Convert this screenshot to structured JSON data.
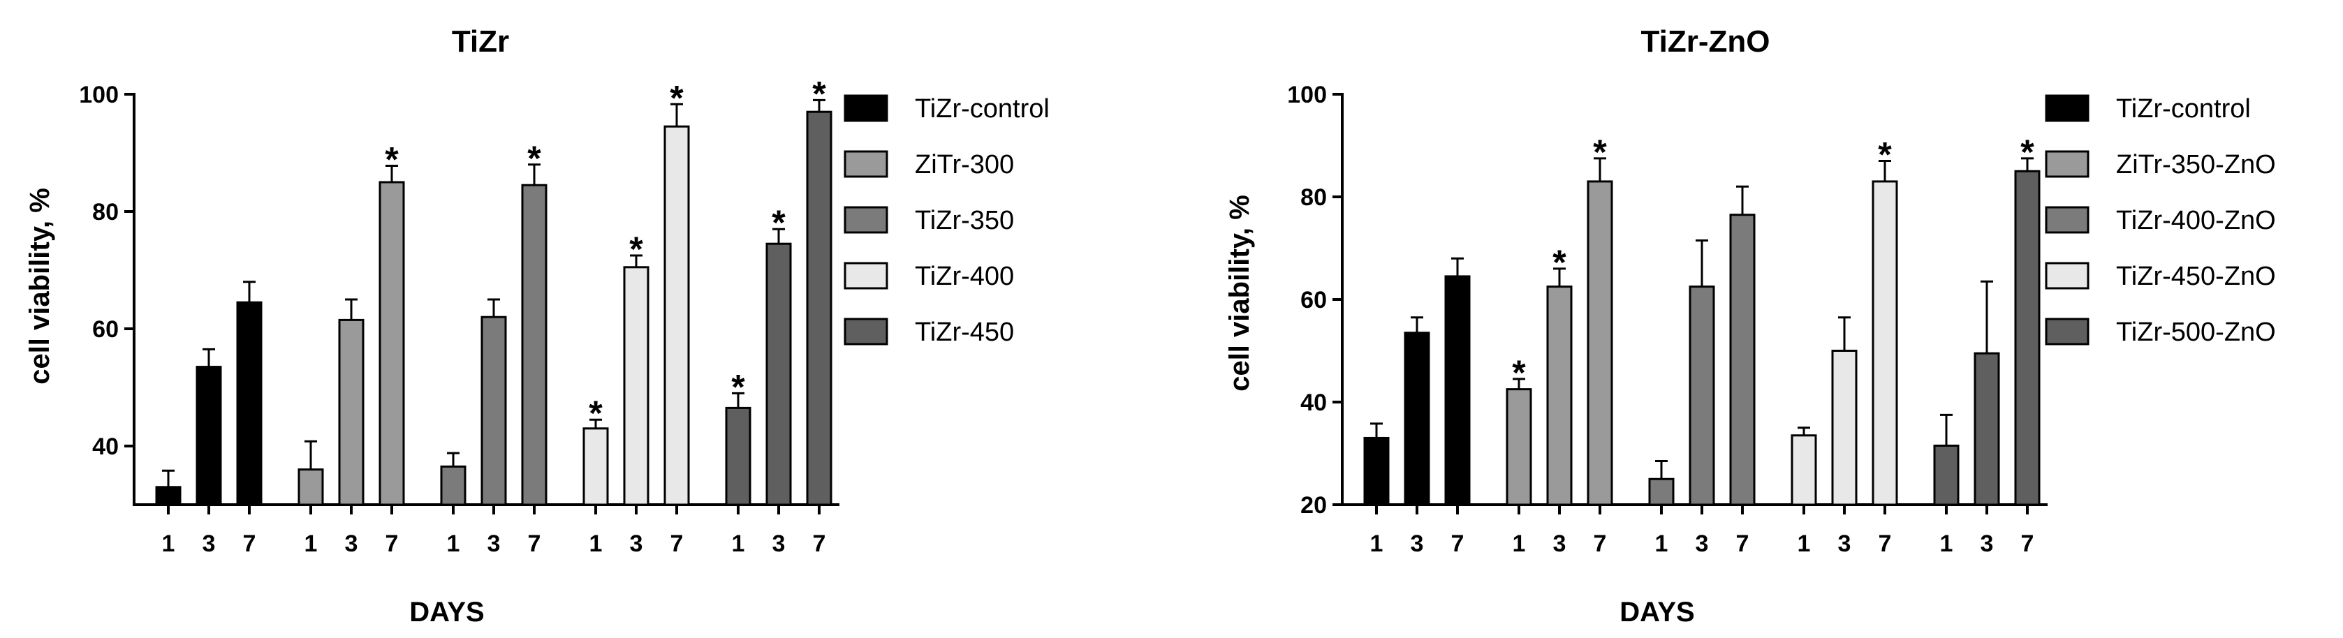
{
  "chart_data": [
    {
      "type": "bar",
      "title": "TiZr",
      "xlabel": "DAYS",
      "ylabel": "cell viability, %",
      "ylim": [
        30,
        100
      ],
      "yticks": [
        40,
        60,
        80,
        100
      ],
      "categories": [
        "1",
        "3",
        "7"
      ],
      "legend_position": "right",
      "significance_marker": "*",
      "series": [
        {
          "name": "TiZr-control",
          "color": "#000000",
          "values": [
            33,
            53.5,
            64.5
          ],
          "errors": [
            2.8,
            3.0,
            3.5
          ],
          "significant": [
            false,
            false,
            false
          ]
        },
        {
          "name": "ZiTr-300",
          "color": "#9a9a9a",
          "values": [
            36,
            61.5,
            85
          ],
          "errors": [
            4.8,
            3.5,
            2.8
          ],
          "significant": [
            false,
            false,
            true
          ]
        },
        {
          "name": "TiZr-350",
          "color": "#7b7b7b",
          "values": [
            36.5,
            62,
            84.5
          ],
          "errors": [
            2.3,
            3.0,
            3.5
          ],
          "significant": [
            false,
            false,
            true
          ]
        },
        {
          "name": "TiZr-400",
          "color": "#e8e8e8",
          "values": [
            43,
            70.5,
            94.5
          ],
          "errors": [
            1.5,
            2.0,
            3.8
          ],
          "significant": [
            true,
            true,
            true
          ]
        },
        {
          "name": "TiZr-450",
          "color": "#5f5f5f",
          "values": [
            46.5,
            74.5,
            97
          ],
          "errors": [
            2.5,
            2.5,
            2.0
          ],
          "significant": [
            true,
            true,
            true
          ]
        }
      ]
    },
    {
      "type": "bar",
      "title": "TiZr-ZnO",
      "xlabel": "DAYS",
      "ylabel": "cell viability, %",
      "ylim": [
        20,
        100
      ],
      "yticks": [
        20,
        40,
        60,
        80,
        100
      ],
      "categories": [
        "1",
        "3",
        "7"
      ],
      "legend_position": "right",
      "significance_marker": "*",
      "series": [
        {
          "name": "TiZr-control",
          "color": "#000000",
          "values": [
            33,
            53.5,
            64.5
          ],
          "errors": [
            2.8,
            3.0,
            3.5
          ],
          "significant": [
            false,
            false,
            false
          ]
        },
        {
          "name": "ZiTr-350-ZnO",
          "color": "#9a9a9a",
          "values": [
            42.5,
            62.5,
            83
          ],
          "errors": [
            2.0,
            3.5,
            4.5
          ],
          "significant": [
            true,
            true,
            true
          ]
        },
        {
          "name": "TiZr-400-ZnO",
          "color": "#7b7b7b",
          "values": [
            25,
            62.5,
            76.5
          ],
          "errors": [
            3.5,
            9.0,
            5.5
          ],
          "significant": [
            false,
            false,
            false
          ]
        },
        {
          "name": "TiZr-450-ZnO",
          "color": "#e8e8e8",
          "values": [
            33.5,
            50,
            83
          ],
          "errors": [
            1.5,
            6.5,
            4.0
          ],
          "significant": [
            false,
            false,
            true
          ]
        },
        {
          "name": "TiZr-500-ZnO",
          "color": "#5f5f5f",
          "values": [
            31.5,
            49.5,
            85
          ],
          "errors": [
            6.0,
            14.0,
            2.5
          ],
          "significant": [
            false,
            false,
            true
          ]
        }
      ]
    }
  ]
}
